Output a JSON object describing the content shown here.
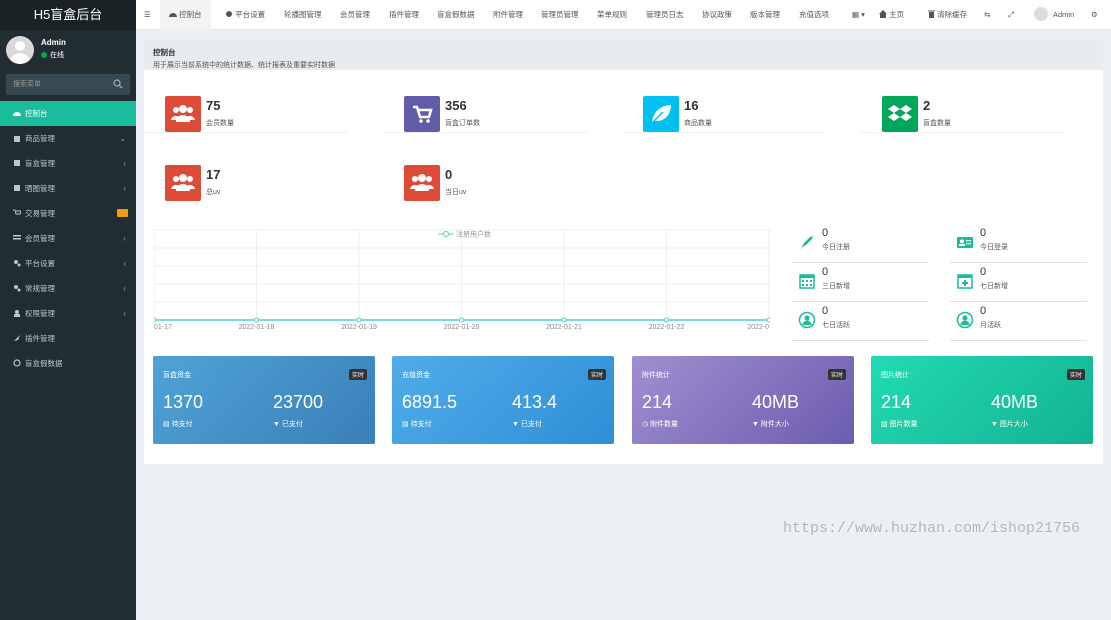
{
  "app": {
    "title": "H5盲盒后台"
  },
  "user": {
    "name": "Admin",
    "status": "在线"
  },
  "search": {
    "placeholder": "搜索菜单"
  },
  "sidebar": {
    "items": [
      {
        "label": "控制台"
      },
      {
        "label": "商品管理"
      },
      {
        "label": "盲盒管理"
      },
      {
        "label": "晒图管理"
      },
      {
        "label": "交易管理"
      },
      {
        "label": "会员管理"
      },
      {
        "label": "平台设置"
      },
      {
        "label": "常规管理"
      },
      {
        "label": "权限管理"
      },
      {
        "label": "插件管理"
      },
      {
        "label": "盲盒假数据"
      }
    ]
  },
  "topnav": {
    "tabs": [
      "控制台",
      "平台设置",
      "轮播图管理",
      "会员管理",
      "插件管理",
      "盲盒假数据",
      "附件管理",
      "管理员管理",
      "菜单规则",
      "管理员日志",
      "协议政策",
      "版本管理",
      "充值选项"
    ],
    "home": "主页",
    "clear_cache": "清除缓存",
    "admin": "Admin"
  },
  "header": {
    "title": "控制台",
    "subtitle": "用于展示当前系统中的统计数据、统计报表及重要实时数据"
  },
  "stats": [
    {
      "value": "75",
      "label": "会员数量",
      "color": "#dd4b39",
      "icon": "users-icon"
    },
    {
      "value": "356",
      "label": "盲盒订单数",
      "color": "#605ca8",
      "icon": "cart-icon"
    },
    {
      "value": "16",
      "label": "商品数量",
      "color": "#00c0ef",
      "icon": "leaf-icon"
    },
    {
      "value": "2",
      "label": "盲盒数量",
      "color": "#00a65a",
      "icon": "dropbox-icon"
    },
    {
      "value": "17",
      "label": "总uv",
      "color": "#dd4b39",
      "icon": "users-icon"
    },
    {
      "value": "0",
      "label": "当日uv",
      "color": "#dd4b39",
      "icon": "users-icon"
    }
  ],
  "chart_data": {
    "type": "line",
    "legend": "注册用户数",
    "x": [
      "01-17",
      "2022-01-18",
      "2022-01-19",
      "2022-01-20",
      "2022-01-21",
      "2022-01-22",
      "2022-0"
    ],
    "series": [
      {
        "name": "注册用户数",
        "values": [
          0,
          0,
          0,
          0,
          0,
          0,
          0
        ]
      }
    ],
    "color": "#4fd1c5"
  },
  "mini_stats": [
    {
      "value": "0",
      "label": "今日注册",
      "icon": "rocket-icon"
    },
    {
      "value": "0",
      "label": "今日登录",
      "icon": "id-card-icon"
    },
    {
      "value": "0",
      "label": "三日新增",
      "icon": "calendar-icon"
    },
    {
      "value": "0",
      "label": "七日新增",
      "icon": "calendar-plus-icon"
    },
    {
      "value": "0",
      "label": "七日活跃",
      "icon": "user-circle-icon"
    },
    {
      "value": "0",
      "label": "月活跃",
      "icon": "user-circle-icon"
    }
  ],
  "cards": [
    {
      "title": "盲盒资金",
      "badge": "实时",
      "v1": "1370",
      "l1": "待支付",
      "v2": "23700",
      "l2": "已支付",
      "color1": "#4a9ed0",
      "color2": "#3a82b9"
    },
    {
      "title": "充值资金",
      "badge": "实时",
      "v1": "6891.5",
      "l1": "待支付",
      "v2": "413.4",
      "l2": "已支付",
      "color1": "#47a7e6",
      "color2": "#2d8ed4"
    },
    {
      "title": "附件统计",
      "badge": "实时",
      "v1": "214",
      "l1": "附件数量",
      "v2": "40MB",
      "l2": "附件大小",
      "color1": "#9d8bcb",
      "color2": "#6f5eb0"
    },
    {
      "title": "图片统计",
      "badge": "实时",
      "v1": "214",
      "l1": "图片数量",
      "v2": "40MB",
      "l2": "图片大小",
      "color1": "#21d7b0",
      "color2": "#14b494"
    }
  ],
  "watermark": "https://www.huzhan.com/ishop21756"
}
